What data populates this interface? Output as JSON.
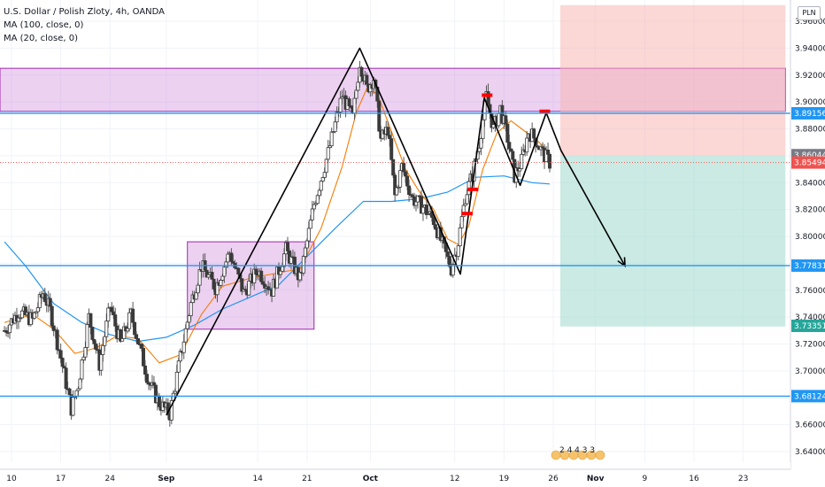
{
  "legend": {
    "title": "U.S. Dollar / Polish Zloty, 4h, OANDA",
    "ma100": "MA (100, close, 0)",
    "ma20": "MA (20, close, 0)"
  },
  "currency_button": "PLN",
  "events_label": "2 4 4 3 3",
  "colors": {
    "up": "#26a69a",
    "down": "#ef5350",
    "candle": "#3a3a3a",
    "ma100": "#2196f3",
    "ma20": "#f57c00",
    "level_line": "#2196f3",
    "zone_fill": "#c97bd6",
    "target_zone": "#a6dcd1",
    "stop_zone": "#f7b6b4",
    "pattern_line": "#000000",
    "marker": "#ff0000"
  },
  "chart_data": {
    "type": "candlestick",
    "symbol": "USDPLN",
    "timeframe": "4h",
    "ylim": [
      3.628,
      3.972
    ],
    "y_ticks": [
      3.64,
      3.66,
      3.68,
      3.7,
      3.72,
      3.74,
      3.76,
      3.78,
      3.8,
      3.82,
      3.84,
      3.86,
      3.88,
      3.9,
      3.92,
      3.94,
      3.96
    ],
    "y_tick_labels": [
      "3.64000",
      "3.66000",
      "3.68000",
      "3.70000",
      "3.72000",
      "3.74000",
      "3.76000",
      "3.78000",
      "3.80000",
      "3.82000",
      "3.84000",
      "3.86000",
      "3.88000",
      "3.90000",
      "3.92000",
      "3.94000",
      "3.96000"
    ],
    "x_day_range": [
      9,
      88
    ],
    "x_ticks": [
      {
        "day": 10,
        "label": "10"
      },
      {
        "day": 17,
        "label": "17"
      },
      {
        "day": 24,
        "label": "24"
      },
      {
        "day": 32,
        "label": "Sep"
      },
      {
        "day": 45,
        "label": "14"
      },
      {
        "day": 52,
        "label": "21"
      },
      {
        "day": 61,
        "label": "Oct"
      },
      {
        "day": 73,
        "label": "12"
      },
      {
        "day": 80,
        "label": "19"
      },
      {
        "day": 87,
        "label": "26"
      },
      {
        "day": 93,
        "label": "Nov"
      },
      {
        "day": 100,
        "label": "9"
      },
      {
        "day": 107,
        "label": "16"
      },
      {
        "day": 114,
        "label": "23"
      }
    ],
    "price_path": [
      [
        9,
        3.73
      ],
      [
        11,
        3.744
      ],
      [
        13,
        3.738
      ],
      [
        14.5,
        3.758
      ],
      [
        15.5,
        3.745
      ],
      [
        17,
        3.71
      ],
      [
        18.5,
        3.672
      ],
      [
        19.5,
        3.69
      ],
      [
        21,
        3.74
      ],
      [
        22.5,
        3.705
      ],
      [
        24,
        3.748
      ],
      [
        25.5,
        3.72
      ],
      [
        27,
        3.742
      ],
      [
        28.5,
        3.712
      ],
      [
        29.5,
        3.692
      ],
      [
        31,
        3.676
      ],
      [
        32.5,
        3.668
      ],
      [
        34,
        3.71
      ],
      [
        35.5,
        3.75
      ],
      [
        37,
        3.778
      ],
      [
        39,
        3.762
      ],
      [
        41,
        3.788
      ],
      [
        43,
        3.758
      ],
      [
        45,
        3.775
      ],
      [
        47,
        3.76
      ],
      [
        49,
        3.79
      ],
      [
        51,
        3.768
      ],
      [
        53,
        3.824
      ],
      [
        55,
        3.862
      ],
      [
        57,
        3.905
      ],
      [
        58.5,
        3.888
      ],
      [
        59.5,
        3.93
      ],
      [
        60.5,
        3.91
      ],
      [
        61.5,
        3.918
      ],
      [
        62.5,
        3.872
      ],
      [
        63.5,
        3.88
      ],
      [
        64.5,
        3.83
      ],
      [
        65.5,
        3.852
      ],
      [
        67,
        3.828
      ],
      [
        68.5,
        3.822
      ],
      [
        70,
        3.812
      ],
      [
        71.5,
        3.79
      ],
      [
        72.5,
        3.776
      ],
      [
        73.5,
        3.796
      ],
      [
        74.5,
        3.83
      ],
      [
        75.5,
        3.846
      ],
      [
        76.5,
        3.87
      ],
      [
        77.5,
        3.904
      ],
      [
        78.5,
        3.88
      ],
      [
        79.5,
        3.895
      ],
      [
        80.5,
        3.873
      ],
      [
        81.5,
        3.845
      ],
      [
        82.5,
        3.856
      ],
      [
        83.5,
        3.878
      ],
      [
        84.5,
        3.872
      ],
      [
        85.5,
        3.862
      ],
      [
        86.5,
        3.855
      ]
    ],
    "ma20_path": [
      [
        9,
        3.736
      ],
      [
        13,
        3.742
      ],
      [
        16,
        3.731
      ],
      [
        19,
        3.713
      ],
      [
        22,
        3.717
      ],
      [
        25,
        3.726
      ],
      [
        28,
        3.724
      ],
      [
        31,
        3.706
      ],
      [
        34,
        3.712
      ],
      [
        37,
        3.742
      ],
      [
        40,
        3.763
      ],
      [
        44,
        3.769
      ],
      [
        48,
        3.773
      ],
      [
        51,
        3.776
      ],
      [
        54,
        3.806
      ],
      [
        57,
        3.852
      ],
      [
        59,
        3.892
      ],
      [
        60.5,
        3.91
      ],
      [
        62,
        3.906
      ],
      [
        64,
        3.878
      ],
      [
        66,
        3.85
      ],
      [
        68,
        3.833
      ],
      [
        70,
        3.82
      ],
      [
        72,
        3.798
      ],
      [
        73.5,
        3.794
      ],
      [
        75,
        3.808
      ],
      [
        77,
        3.85
      ],
      [
        79,
        3.877
      ],
      [
        81,
        3.886
      ],
      [
        83,
        3.878
      ],
      [
        85,
        3.87
      ],
      [
        86.5,
        3.862
      ]
    ],
    "ma100_path": [
      [
        9,
        3.796
      ],
      [
        12,
        3.778
      ],
      [
        16,
        3.75
      ],
      [
        20,
        3.736
      ],
      [
        24,
        3.727
      ],
      [
        28,
        3.722
      ],
      [
        32,
        3.725
      ],
      [
        36,
        3.734
      ],
      [
        40,
        3.746
      ],
      [
        44,
        3.755
      ],
      [
        48,
        3.764
      ],
      [
        52,
        3.785
      ],
      [
        56,
        3.806
      ],
      [
        60,
        3.826
      ],
      [
        64,
        3.826
      ],
      [
        68,
        3.828
      ],
      [
        72,
        3.833
      ],
      [
        76,
        3.844
      ],
      [
        80,
        3.845
      ],
      [
        84,
        3.84
      ],
      [
        86.5,
        3.839
      ]
    ],
    "pattern_polyline": [
      [
        32,
        3.667
      ],
      [
        59.5,
        3.94
      ],
      [
        73.8,
        3.772
      ],
      [
        77.2,
        3.903
      ],
      [
        82.3,
        3.838
      ],
      [
        86.0,
        3.892
      ],
      [
        88.1,
        3.864
      ],
      [
        97.2,
        3.778
      ]
    ],
    "markers": [
      {
        "day": 77.6,
        "price": 3.905
      },
      {
        "day": 75.6,
        "price": 3.835
      },
      {
        "day": 74.8,
        "price": 3.817
      },
      {
        "day": 85.8,
        "price": 3.893
      }
    ],
    "zones": [
      {
        "day_start": 0,
        "day_end": 120,
        "price_top": 3.925,
        "price_bottom": 3.893,
        "kind": "resistance"
      },
      {
        "day_start": 35,
        "day_end": 53,
        "price_top": 3.796,
        "price_bottom": 3.731,
        "kind": "range"
      },
      {
        "day_start": 88,
        "day_end": 120,
        "price_top": 3.972,
        "price_bottom": 3.86,
        "kind": "stop"
      },
      {
        "day_start": 88,
        "day_end": 120,
        "price_top": 3.86,
        "price_bottom": 3.733,
        "kind": "target"
      }
    ],
    "horizontal_levels": [
      {
        "price": 3.89156,
        "label": "3.89156"
      },
      {
        "price": 3.77831,
        "label": "3.77831"
      },
      {
        "price": 3.68124,
        "label": "3.68124"
      }
    ],
    "price_tags": [
      {
        "price": 3.86044,
        "label": "3.86044",
        "color": "#787b86"
      },
      {
        "price": 3.85494,
        "label": "3.85494",
        "color": "#ef5350"
      },
      {
        "price": 3.73351,
        "label": "3.73351",
        "color": "#26a69a"
      }
    ]
  }
}
